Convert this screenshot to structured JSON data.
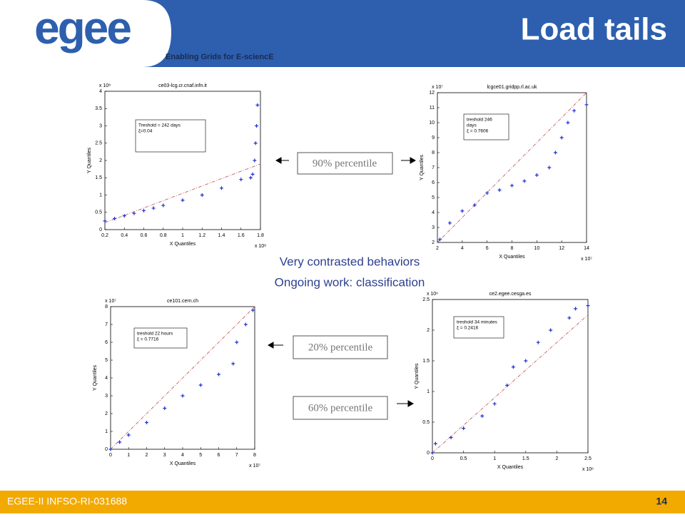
{
  "header": {
    "logo": "egee",
    "subtitle": "Enabling Grids for E-sciencE",
    "title": "Load tails"
  },
  "notes": [
    "Very contrasted behaviors",
    "Ongoing work: classification"
  ],
  "labels": [
    "90% percentile",
    "20% percentile",
    "60% percentile"
  ],
  "footer": {
    "left": "EGEE-II INFSO-RI-031688",
    "page": "14"
  },
  "chart_data": [
    {
      "type": "scatter",
      "title": "ce03-lcg.cr.cnaf.infn.it",
      "x_label": "X Quantiles",
      "y_label": "Y Quantiles",
      "x_scale": "x 10⁸",
      "y_scale": "x 10⁸",
      "annotation": [
        "Treshold = 242 days",
        "ξ=0.04"
      ],
      "xlim": [
        0.2,
        1.8
      ],
      "xticks": [
        0.2,
        0.4,
        0.6,
        0.8,
        1,
        1.2,
        1.4,
        1.6,
        1.8
      ],
      "ylim": [
        0,
        4
      ],
      "yticks": [
        0,
        0.5,
        1,
        1.5,
        2,
        2.5,
        3,
        3.5,
        4
      ],
      "series": [
        {
          "color": "#1f2fd0",
          "x": [
            0.2,
            0.3,
            0.4,
            0.5,
            0.6,
            0.7,
            0.8,
            1.0,
            1.2,
            1.4,
            1.6,
            1.7,
            1.72,
            1.74,
            1.75,
            1.76,
            1.77
          ],
          "values": [
            0.25,
            0.32,
            0.4,
            0.47,
            0.55,
            0.62,
            0.7,
            0.85,
            1.0,
            1.2,
            1.45,
            1.5,
            1.6,
            2.0,
            2.5,
            3.0,
            3.6
          ]
        }
      ],
      "reference": {
        "color": "#c05050",
        "x": [
          0.2,
          1.8
        ],
        "values": [
          0.2,
          1.9
        ]
      }
    },
    {
      "type": "scatter",
      "title": "lcgce01.gridpp.rl.ac.uk",
      "x_label": "X Quantiles",
      "y_label": "Y Quantiles",
      "x_scale": "x 10⁷",
      "y_scale": "x 10⁷",
      "annotation": [
        "treshold 246",
        "days",
        "ξ = 0.7606"
      ],
      "xlim": [
        2,
        14
      ],
      "xticks": [
        2,
        4,
        6,
        8,
        10,
        12,
        14
      ],
      "ylim": [
        2,
        12
      ],
      "yticks": [
        2,
        3,
        4,
        5,
        6,
        7,
        8,
        9,
        10,
        11,
        12
      ],
      "series": [
        {
          "color": "#1f2fd0",
          "x": [
            2.2,
            3,
            4,
            5,
            6,
            7,
            8,
            9,
            10,
            11,
            11.5,
            12,
            12.5,
            13,
            14
          ],
          "values": [
            2.2,
            3.3,
            4.1,
            4.5,
            5.3,
            5.5,
            5.8,
            6.1,
            6.5,
            7.0,
            8,
            9,
            10,
            10.8,
            11.2
          ]
        }
      ],
      "reference": {
        "color": "#c05050",
        "x": [
          2,
          14
        ],
        "values": [
          2,
          12
        ]
      }
    },
    {
      "type": "scatter",
      "title": "ce101.cern.ch",
      "x_label": "X Quantiles",
      "y_label": "Y Quantiles",
      "x_scale": "x 10⁷",
      "y_scale": "x 10⁷",
      "annotation": [
        "treshold 22 hours",
        "ξ = 0.7716"
      ],
      "xlim": [
        0,
        8
      ],
      "xticks": [
        0,
        1,
        2,
        3,
        4,
        5,
        6,
        7,
        8
      ],
      "ylim": [
        0,
        8
      ],
      "yticks": [
        0,
        1,
        2,
        3,
        4,
        5,
        6,
        7,
        8
      ],
      "series": [
        {
          "color": "#1f2fd0",
          "x": [
            0,
            0.5,
            1,
            2,
            3,
            4,
            5,
            6,
            6.8,
            7.0,
            7.5,
            7.9
          ],
          "values": [
            0,
            0.4,
            0.8,
            1.5,
            2.3,
            3.0,
            3.6,
            4.2,
            4.8,
            6.0,
            7.0,
            7.8
          ]
        }
      ],
      "reference": {
        "color": "#c05050",
        "x": [
          0,
          8
        ],
        "values": [
          0,
          8
        ]
      }
    },
    {
      "type": "scatter",
      "title": "ce2.egee.cesga.es",
      "x_label": "X Quantiles",
      "y_label": "Y Quantiles",
      "x_scale": "x 10⁶",
      "y_scale": "x 10⁶",
      "annotation": [
        "treshold 34 minutes",
        "ξ = 0.2416"
      ],
      "xlim": [
        0,
        2.5
      ],
      "xticks": [
        0,
        0.5,
        1,
        1.5,
        2,
        2.5
      ],
      "ylim": [
        0,
        2.5
      ],
      "yticks": [
        0,
        0.5,
        1,
        1.5,
        2,
        2.5
      ],
      "series": [
        {
          "color": "#1f2fd0",
          "x": [
            0,
            0.05,
            0.3,
            0.5,
            0.8,
            1.0,
            1.2,
            1.3,
            1.5,
            1.7,
            1.9,
            2.2,
            2.3,
            2.5
          ],
          "values": [
            0,
            0.15,
            0.25,
            0.4,
            0.6,
            0.8,
            1.1,
            1.4,
            1.5,
            1.8,
            2.0,
            2.2,
            2.35,
            2.4
          ]
        }
      ],
      "reference": {
        "color": "#c05050",
        "x": [
          0,
          2.5
        ],
        "values": [
          0,
          2.25
        ]
      }
    }
  ]
}
